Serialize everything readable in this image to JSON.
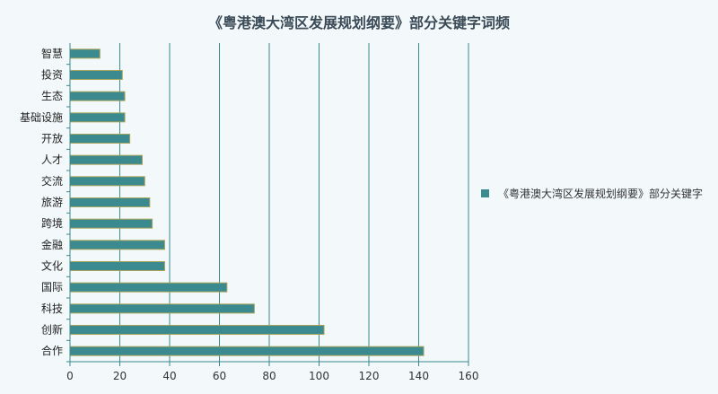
{
  "chart_data": {
    "type": "bar",
    "orientation": "horizontal",
    "title": "《粤港澳大湾区发展规划纲要》部分关键字词频",
    "xlabel": "",
    "ylabel": "",
    "xlim": [
      0,
      160
    ],
    "xticks": [
      0,
      20,
      40,
      60,
      80,
      100,
      120,
      140,
      160
    ],
    "grid": "vertical",
    "legend_position": "right",
    "categories": [
      "智慧",
      "投资",
      "生态",
      "基础设施",
      "开放",
      "人才",
      "交流",
      "旅游",
      "跨境",
      "金融",
      "文化",
      "国际",
      "科技",
      "创新",
      "合作"
    ],
    "series": [
      {
        "name": "《粤港澳大湾区发展规划纲要》部分关键字",
        "values": [
          12,
          21,
          22,
          22,
          24,
          29,
          30,
          32,
          33,
          38,
          38,
          63,
          74,
          102,
          142
        ],
        "color": "#3a8a8f"
      }
    ]
  }
}
